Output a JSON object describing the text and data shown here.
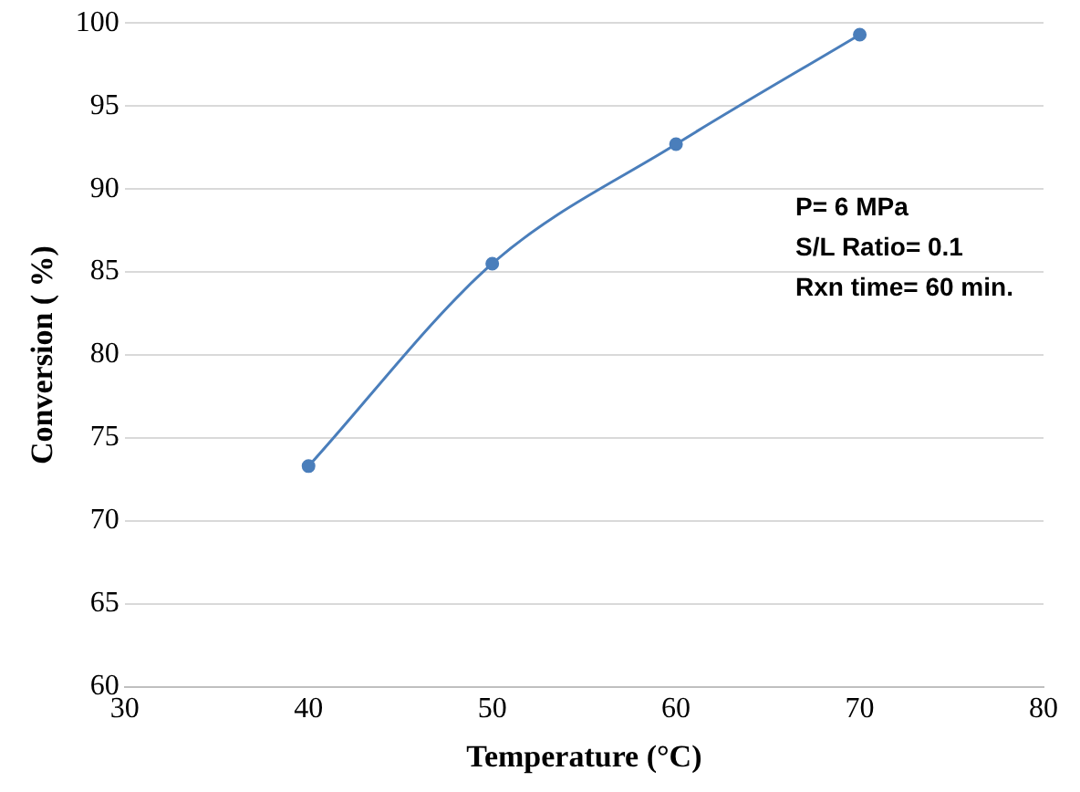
{
  "chart_data": {
    "type": "line",
    "xlabel": "Temperature (°C)",
    "ylabel": "Conversion ( %)",
    "x": [
      40,
      50,
      60,
      70
    ],
    "series": [
      {
        "color": "#4a7ebb",
        "values": [
          73.3,
          85.5,
          92.7,
          99.3
        ]
      }
    ],
    "xlim": [
      30,
      80
    ],
    "xticks": [
      30,
      40,
      50,
      60,
      70,
      80
    ],
    "ylim": [
      60,
      100
    ],
    "yticks": [
      60,
      65,
      70,
      75,
      80,
      85,
      90,
      95,
      100
    ],
    "grid": "y",
    "marker": "circle",
    "legend": false,
    "annotations": [
      "P= 6 MPa",
      "S/L Ratio= 0.1",
      "Rxn time= 60 min."
    ]
  }
}
